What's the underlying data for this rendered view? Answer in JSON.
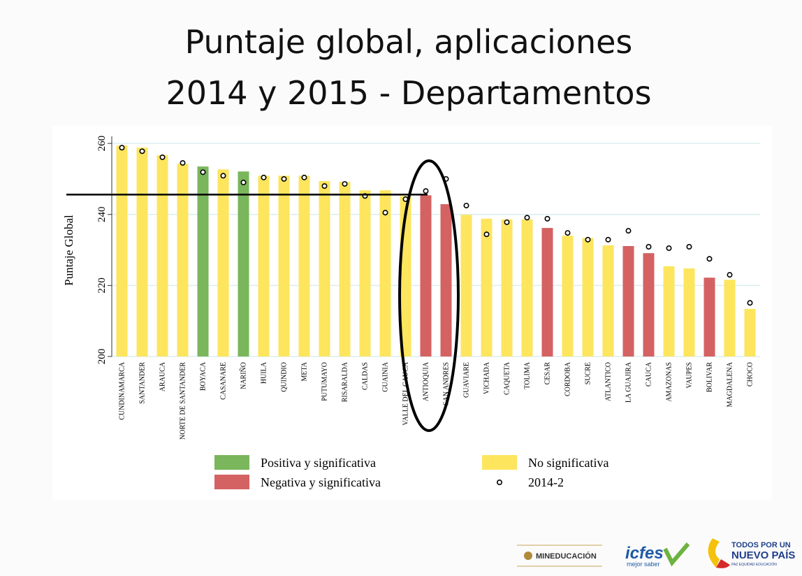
{
  "chart_data": {
    "type": "bar",
    "title": [
      "Puntaje global, aplicaciones",
      "2014 y 2015 - Departamentos"
    ],
    "y_label": "Puntaje Global",
    "categories": [
      "CUNDINAMARCA",
      "SANTANDER",
      "ARAUCA",
      "NORTE DE SANTANDER",
      "BOYACA",
      "CASANARE",
      "NARIÑO",
      "HUILA",
      "QUINDIO",
      "META",
      "PUTUMAYO",
      "RISARALDA",
      "CALDAS",
      "GUAINIA",
      "VALLE DEL CAUCA",
      "ANTIOQUIA",
      "SAN ANDRES",
      "GUAVIARE",
      "VICHADA",
      "CAQUETA",
      "TOLIMA",
      "CESAR",
      "CORDOBA",
      "SUCRE",
      "ATLANTICO",
      "LA GUAJIRA",
      "CAUCA",
      "AMAZONAS",
      "VAUPES",
      "BOLIVAR",
      "MAGDALENA",
      "CHOCO"
    ],
    "values": [
      259.4,
      258.8,
      256.7,
      254.3,
      253.5,
      252.7,
      252.1,
      250.9,
      250.9,
      250.9,
      249.4,
      249.2,
      246.8,
      246.8,
      245.2,
      245.4,
      242.9,
      239.9,
      238.8,
      238.6,
      238.6,
      236.2,
      234.0,
      233.4,
      231.3,
      231.1,
      229.1,
      225.4,
      224.8,
      222.2,
      221.6,
      213.4
    ],
    "bar_colors": [
      "#fde55e",
      "#fde55e",
      "#fde55e",
      "#fde55e",
      "#7ab65c",
      "#fde55e",
      "#7ab65c",
      "#fde55e",
      "#fde55e",
      "#fde55e",
      "#fde55e",
      "#fde55e",
      "#fde55e",
      "#fde55e",
      "#fde55e",
      "#d46262",
      "#d46262",
      "#fde55e",
      "#fde55e",
      "#fde55e",
      "#fde55e",
      "#d46262",
      "#fde55e",
      "#fde55e",
      "#fde55e",
      "#d46262",
      "#d46262",
      "#fde55e",
      "#fde55e",
      "#d46262",
      "#fde55e",
      "#fde55e"
    ],
    "points": [
      258.8,
      257.8,
      256.1,
      254.5,
      251.9,
      250.9,
      249.0,
      250.4,
      250.0,
      250.4,
      248.0,
      248.6,
      245.2,
      240.5,
      244.3,
      246.6,
      250.0,
      242.5,
      234.4,
      237.8,
      239.1,
      238.8,
      234.8,
      232.9,
      232.9,
      235.4,
      230.9,
      230.5,
      230.9,
      227.5,
      223.0,
      215.1
    ],
    "legend": [
      {
        "name": "Positiva y significativa",
        "color": "#7ab65c"
      },
      {
        "name": "No significativa",
        "color": "#fde55e"
      },
      {
        "name": "Negativa y significativa",
        "color": "#d46262"
      },
      {
        "name": "2014-2",
        "color": "#000000"
      }
    ],
    "reference_line": 245.6,
    "ylim": [
      200,
      262
    ],
    "yticks": [
      200,
      220,
      240,
      260
    ],
    "grid": true
  },
  "footer": {
    "ministry": "MINEDUCACIÓN",
    "icfes": "icfes",
    "icfes_tagline": "mejor saber",
    "gov_line1": "TODOS POR UN",
    "gov_line2": "NUEVO PAÍS",
    "gov_line3": "PAZ EQUIDAD EDUCACIÓN"
  }
}
